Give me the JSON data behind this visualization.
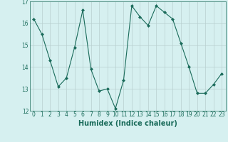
{
  "x": [
    0,
    1,
    2,
    3,
    4,
    5,
    6,
    7,
    8,
    9,
    10,
    11,
    12,
    13,
    14,
    15,
    16,
    17,
    18,
    19,
    20,
    21,
    22,
    23
  ],
  "y": [
    16.2,
    15.5,
    14.3,
    13.1,
    13.5,
    14.9,
    16.6,
    13.9,
    12.9,
    13.0,
    12.1,
    13.4,
    16.8,
    16.3,
    15.9,
    16.8,
    16.5,
    16.2,
    15.1,
    14.0,
    12.8,
    12.8,
    13.2,
    13.7
  ],
  "line_color": "#1a6b5a",
  "marker": "D",
  "marker_size": 2,
  "bg_color": "#d6f0f0",
  "grid_color": "#b8d0d0",
  "xlabel": "Humidex (Indice chaleur)",
  "ylim": [
    12,
    17
  ],
  "xlim": [
    -0.5,
    23.5
  ],
  "yticks": [
    12,
    13,
    14,
    15,
    16,
    17
  ],
  "xticks": [
    0,
    1,
    2,
    3,
    4,
    5,
    6,
    7,
    8,
    9,
    10,
    11,
    12,
    13,
    14,
    15,
    16,
    17,
    18,
    19,
    20,
    21,
    22,
    23
  ],
  "tick_fontsize": 5.5,
  "xlabel_fontsize": 7
}
